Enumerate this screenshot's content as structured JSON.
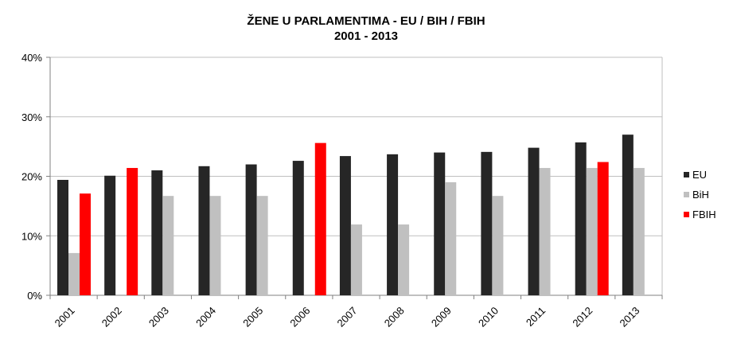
{
  "chart_data": {
    "type": "bar",
    "title": "ŽENE U PARLAMENTIMA  - EU / BIH / FBIH",
    "subtitle": "2001 - 2013",
    "categories": [
      "2001",
      "2002",
      "2003",
      "2004",
      "2005",
      "2006",
      "2007",
      "2008",
      "2009",
      "2010",
      "2011",
      "2012",
      "2013"
    ],
    "series": [
      {
        "name": "EU",
        "color": "#262626",
        "values": [
          19.4,
          20.1,
          21.0,
          21.7,
          22.0,
          22.6,
          23.4,
          23.7,
          24.0,
          24.1,
          24.8,
          25.7,
          27.0
        ]
      },
      {
        "name": "BiH",
        "color": "#c0c0c0",
        "values": [
          7.1,
          null,
          16.7,
          16.7,
          16.7,
          null,
          11.9,
          11.9,
          19.0,
          16.7,
          21.4,
          21.4,
          21.4
        ]
      },
      {
        "name": "FBIH",
        "color": "#ff0000",
        "values": [
          17.1,
          21.4,
          null,
          null,
          null,
          25.6,
          null,
          null,
          null,
          null,
          null,
          22.4,
          null
        ]
      }
    ],
    "ylim": [
      0,
      40
    ],
    "yticks": [
      0,
      10,
      20,
      30,
      40
    ],
    "ytick_labels": [
      "0%",
      "10%",
      "20%",
      "30%",
      "40%"
    ],
    "grid": true,
    "legend_position": "right",
    "xlabel": "",
    "ylabel": ""
  }
}
